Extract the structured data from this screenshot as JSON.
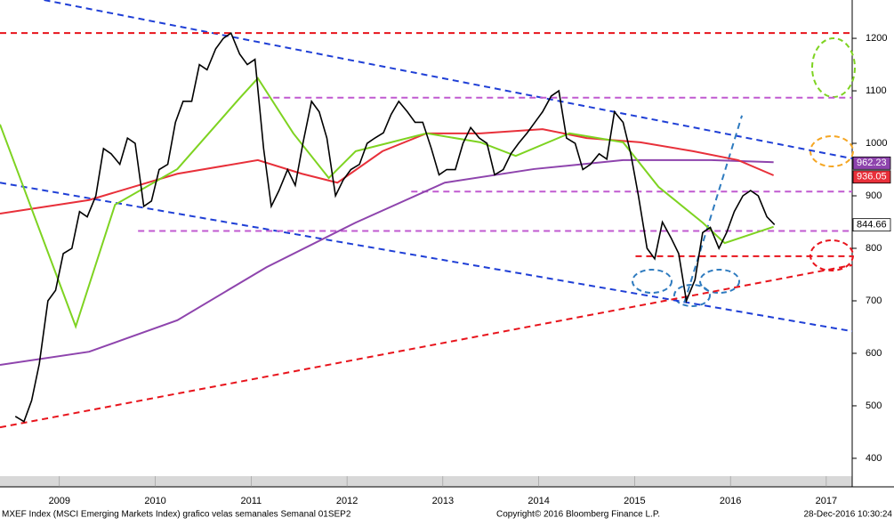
{
  "chart_data": {
    "type": "line",
    "footer_left": "MXEF Index (MSCI Emerging Markets Index) grafico velas semanales  Semanal 01SEP2",
    "footer_center": "Copyright© 2016 Bloomberg Finance L.P.",
    "footer_right": "28-Dec-2016 10:30:24",
    "xlim": [
      2008.88,
      2017.77
    ],
    "ylim": [
      366,
      1273
    ],
    "yticks": [
      400,
      500,
      600,
      700,
      800,
      900,
      1000,
      1100,
      1200
    ],
    "xticks": [
      {
        "value": 2009.5,
        "label": "2009"
      },
      {
        "value": 2010.5,
        "label": "2010"
      },
      {
        "value": 2011.5,
        "label": "2011"
      },
      {
        "value": 2012.5,
        "label": "2012"
      },
      {
        "value": 2013.5,
        "label": "2013"
      },
      {
        "value": 2014.5,
        "label": "2014"
      },
      {
        "value": 2015.5,
        "label": "2015"
      },
      {
        "value": 2016.5,
        "label": "2016"
      },
      {
        "value": 2017.5,
        "label": "2017"
      }
    ],
    "series": [
      {
        "color": "#000000",
        "width": 1.6,
        "x": [
          2009.04,
          2009.13,
          2009.21,
          2009.29,
          2009.38,
          2009.46,
          2009.54,
          2009.63,
          2009.71,
          2009.79,
          2009.88,
          2009.96,
          2010.04,
          2010.13,
          2010.21,
          2010.29,
          2010.38,
          2010.46,
          2010.54,
          2010.63,
          2010.71,
          2010.79,
          2010.88,
          2010.96,
          2011.04,
          2011.13,
          2011.21,
          2011.29,
          2011.38,
          2011.46,
          2011.54,
          2011.63,
          2011.71,
          2011.79,
          2011.88,
          2011.96,
          2012.04,
          2012.13,
          2012.21,
          2012.29,
          2012.38,
          2012.46,
          2012.54,
          2012.63,
          2012.71,
          2012.79,
          2012.88,
          2012.96,
          2013.04,
          2013.13,
          2013.21,
          2013.29,
          2013.38,
          2013.46,
          2013.54,
          2013.63,
          2013.71,
          2013.79,
          2013.88,
          2013.96,
          2014.04,
          2014.13,
          2014.21,
          2014.29,
          2014.38,
          2014.46,
          2014.54,
          2014.63,
          2014.71,
          2014.79,
          2014.88,
          2014.96,
          2015.04,
          2015.13,
          2015.21,
          2015.29,
          2015.38,
          2015.46,
          2015.54,
          2015.63,
          2015.71,
          2015.79,
          2015.88,
          2015.96,
          2016.04,
          2016.13,
          2016.21,
          2016.29,
          2016.38,
          2016.46,
          2016.54,
          2016.63,
          2016.71,
          2016.79,
          2016.88,
          2016.96
        ],
        "values": [
          480,
          470,
          510,
          580,
          700,
          720,
          790,
          800,
          870,
          860,
          900,
          990,
          980,
          960,
          1010,
          1000,
          880,
          890,
          950,
          960,
          1040,
          1080,
          1080,
          1150,
          1140,
          1180,
          1200,
          1210,
          1170,
          1150,
          1160,
          990,
          880,
          910,
          950,
          920,
          1000,
          1080,
          1060,
          1010,
          900,
          930,
          950,
          960,
          1000,
          1010,
          1020,
          1055,
          1080,
          1060,
          1040,
          1040,
          990,
          940,
          950,
          950,
          1000,
          1030,
          1010,
          1000,
          940,
          950,
          980,
          1000,
          1020,
          1040,
          1060,
          1090,
          1100,
          1010,
          1000,
          950,
          960,
          980,
          970,
          1060,
          1040,
          980,
          900,
          800,
          780,
          850,
          820,
          790,
          700,
          740,
          830,
          840,
          800,
          830,
          870,
          900,
          910,
          900,
          860,
          845
        ]
      },
      {
        "color": "#7ed321",
        "width": 2,
        "x": [
          2008.88,
          2009.67,
          2010.08,
          2010.73,
          2011.38,
          2011.57,
          2011.94,
          2012.31,
          2012.59,
          2012.96,
          2013.33,
          2013.89,
          2014.26,
          2014.82,
          2015.38,
          2015.75,
          2016.21,
          2016.44,
          2016.67,
          2016.95
        ],
        "values": [
          1036,
          651,
          883,
          951,
          1086,
          1124,
          1019,
          934,
          985,
          1002,
          1019,
          1002,
          976,
          1019,
          1002,
          917,
          849,
          810,
          824,
          841
        ]
      },
      {
        "color": "#e8303a",
        "width": 2,
        "x": [
          2008.88,
          2009.81,
          2010.73,
          2011.57,
          2012.03,
          2012.4,
          2012.87,
          2013.33,
          2013.89,
          2014.54,
          2015.0,
          2015.56,
          2016.11,
          2016.58,
          2016.95
        ],
        "values": [
          866,
          892,
          942,
          968,
          942,
          925,
          985,
          1019,
          1019,
          1027,
          1010,
          1002,
          985,
          968,
          939
        ]
      },
      {
        "color": "#8e44ad",
        "width": 2,
        "x": [
          2008.88,
          2009.81,
          2010.73,
          2011.66,
          2012.59,
          2013.52,
          2014.45,
          2015.38,
          2016.3,
          2016.95
        ],
        "values": [
          578,
          603,
          663,
          764,
          849,
          925,
          951,
          968,
          968,
          964
        ]
      }
    ],
    "trendlines": [
      {
        "color": "#1f3fd6",
        "x": [
          2009.34,
          2017.77
        ],
        "values": [
          1273,
          971
        ]
      },
      {
        "color": "#1f3fd6",
        "x": [
          2008.88,
          2017.77
        ],
        "values": [
          925,
          642
        ]
      },
      {
        "color": "#e8141c",
        "x": [
          2008.88,
          2017.77
        ],
        "values": [
          459,
          768
        ]
      },
      {
        "color": "#2e7bbf",
        "x": [
          2016.02,
          2016.62
        ],
        "values": [
          697,
          1053
        ]
      },
      {
        "color": "#e8141c",
        "x": [
          2008.88,
          2017.77
        ],
        "values": [
          1210,
          1210
        ]
      },
      {
        "color": "#e8141c",
        "x": [
          2015.51,
          2017.77
        ],
        "values": [
          785,
          785
        ]
      },
      {
        "color": "#c05ad0",
        "x": [
          2011.62,
          2017.77
        ],
        "values": [
          1087,
          1087
        ]
      },
      {
        "color": "#c05ad0",
        "x": [
          2013.17,
          2017.77
        ],
        "values": [
          908,
          908
        ]
      },
      {
        "color": "#c05ad0",
        "x": [
          2010.32,
          2017.77
        ],
        "values": [
          833,
          833
        ]
      }
    ],
    "price_labels": [
      {
        "value": 962.23,
        "label": "962.23",
        "color": "#8e44ad"
      },
      {
        "value": 936.05,
        "label": "936.05",
        "color": "#e8303a"
      },
      {
        "value": 844.66,
        "label": "844.66",
        "color": "#ffffff"
      }
    ]
  }
}
